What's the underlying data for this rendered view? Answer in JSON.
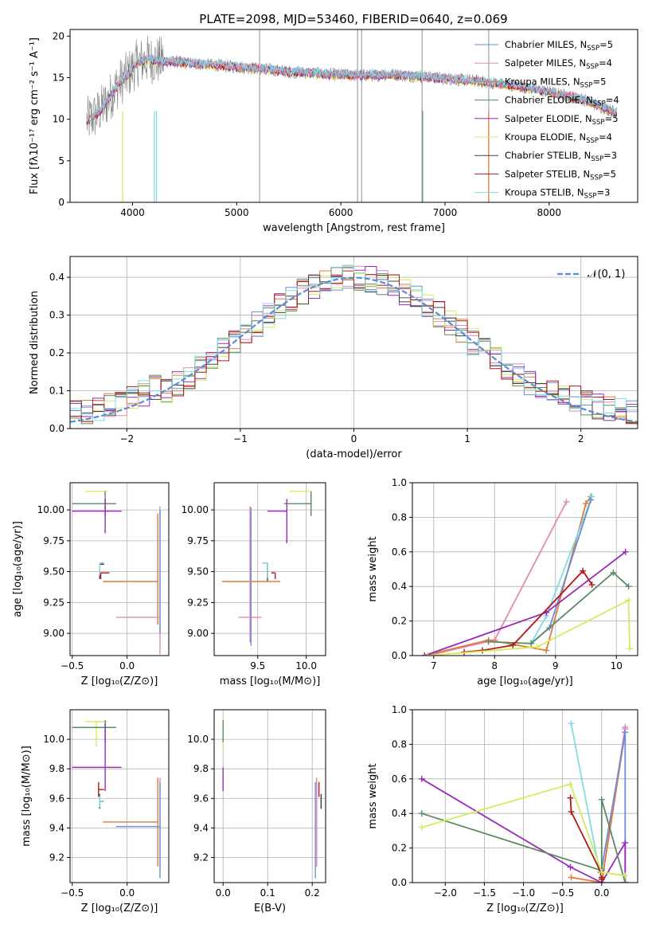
{
  "title": "PLATE=2098, MJD=53460, FIBERID=0640, z=0.069",
  "colors": {
    "chabrier_miles": "#6a8fd8",
    "salpeter_miles": "#e08ab8",
    "kroupa_miles": "#e07a3a",
    "chabrier_elodie": "#5c8a64",
    "salpeter_elodie": "#9a2ab8",
    "kroupa_elodie": "#d4ec5c",
    "chabrier_stelib": "#404040",
    "salpeter_stelib": "#b01818",
    "kroupa_stelib": "#7fdde0",
    "data": "#808080",
    "gaussian": "#5a8ad8"
  },
  "legend_top": [
    {
      "text": "Chabrier MILES, N",
      "sub": "SSP",
      "tail": "=5",
      "color_key": "chabrier_miles"
    },
    {
      "text": "Salpeter MILES, N",
      "sub": "SSP",
      "tail": "=4",
      "color_key": "salpeter_miles"
    },
    {
      "text": "Kroupa MILES, N",
      "sub": "SSP",
      "tail": "=5",
      "color_key": "kroupa_miles"
    },
    {
      "text": "Chabrier ELODIE, N",
      "sub": "SSP",
      "tail": "=4",
      "color_key": "chabrier_elodie"
    },
    {
      "text": "Salpeter ELODIE, N",
      "sub": "SSP",
      "tail": "=5",
      "color_key": "salpeter_elodie"
    },
    {
      "text": "Kroupa ELODIE, N",
      "sub": "SSP",
      "tail": "=4",
      "color_key": "kroupa_elodie"
    },
    {
      "text": "Chabrier STELIB, N",
      "sub": "SSP",
      "tail": "=3",
      "color_key": "chabrier_stelib"
    },
    {
      "text": "Salpeter STELIB, N",
      "sub": "SSP",
      "tail": "=5",
      "color_key": "salpeter_stelib"
    },
    {
      "text": "Kroupa STELIB, N",
      "sub": "SSP",
      "tail": "=3",
      "color_key": "kroupa_stelib"
    }
  ],
  "chart_data": [
    {
      "id": "spectrum",
      "type": "line",
      "xlabel": "wavelength [Angstrom, rest frame]",
      "ylabel": "Flux [fλ10⁻¹⁷ erg cm⁻² s⁻¹ A⁻¹]",
      "xlim": [
        3400,
        8850
      ],
      "ylim": [
        0,
        20.8
      ],
      "xticks": [
        4000,
        5000,
        6000,
        7000,
        8000
      ],
      "yticks": [
        0,
        5,
        10,
        15,
        20
      ],
      "continuum": {
        "x": [
          3560,
          3650,
          3750,
          3850,
          3950,
          4050,
          4150,
          4300,
          4500,
          4700,
          4900,
          5100,
          5300,
          5500,
          5700,
          5900,
          6100,
          6300,
          6500,
          6700,
          6900,
          7100,
          7300,
          7500,
          7700,
          7900,
          8100,
          8300,
          8500,
          8650
        ],
        "y": [
          9.8,
          10.5,
          12.0,
          14.0,
          15.3,
          16.8,
          17.2,
          17.0,
          16.8,
          16.6,
          16.4,
          16.2,
          16.0,
          15.7,
          15.6,
          15.4,
          15.3,
          15.3,
          15.4,
          15.2,
          15.0,
          14.8,
          14.6,
          14.3,
          14.0,
          13.5,
          13.0,
          12.5,
          11.5,
          10.8
        ]
      }
    },
    {
      "id": "residuals",
      "type": "histogram",
      "xlabel": "(data-model)/error",
      "ylabel": "Normed distribution",
      "xlim": [
        -2.5,
        2.5
      ],
      "ylim": [
        0,
        0.455
      ],
      "xticks": [
        -2,
        -1,
        0,
        1,
        2
      ],
      "yticks": [
        0.0,
        0.1,
        0.2,
        0.3,
        0.4
      ],
      "legend": "𝒩(0, 1)",
      "bin_width": 0.1
    },
    {
      "id": "age_vs_Z",
      "type": "errorbar",
      "xlabel": "Z [log₁₀(Z/Z⊙)]",
      "ylabel": "age  [log₁₀(age/yr)]",
      "xlim": [
        -0.52,
        0.38
      ],
      "ylim": [
        8.82,
        10.22
      ],
      "xticks": [
        -0.5,
        0.0
      ],
      "yticks": [
        9.0,
        9.25,
        9.5,
        9.75,
        10.0
      ],
      "points": [
        {
          "k": "kroupa_elodie",
          "x": -0.28,
          "xerr": [
            0.1,
            0.1
          ],
          "y": 10.15,
          "yerr": [
            0.0,
            0.0
          ]
        },
        {
          "k": "chabrier_elodie",
          "x": -0.2,
          "xerr": [
            0.3,
            0.1
          ],
          "y": 10.05,
          "yerr": [
            0.1,
            0.1
          ]
        },
        {
          "k": "salpeter_elodie",
          "x": -0.2,
          "xerr": [
            0.3,
            0.15
          ],
          "y": 9.99,
          "yerr": [
            0.18,
            0.1
          ]
        },
        {
          "k": "chabrier_stelib",
          "x": -0.25,
          "xerr": [
            0.0,
            0.04
          ],
          "y": 9.56,
          "yerr": [
            0.12,
            0.0
          ]
        },
        {
          "k": "kroupa_stelib",
          "x": -0.25,
          "xerr": [
            0.0,
            0.04
          ],
          "y": 9.57,
          "yerr": [
            0.1,
            0.0
          ]
        },
        {
          "k": "salpeter_stelib",
          "x": -0.24,
          "xerr": [
            0.0,
            0.08
          ],
          "y": 9.49,
          "yerr": [
            0.05,
            0.0
          ]
        },
        {
          "k": "kroupa_miles",
          "x": 0.28,
          "xerr": [
            0.5,
            0.0
          ],
          "y": 9.42,
          "yerr": [
            0.35,
            0.55
          ]
        },
        {
          "k": "salpeter_miles",
          "x": 0.3,
          "xerr": [
            0.4,
            0.0
          ],
          "y": 9.13,
          "yerr": [
            0.3,
            0.9
          ]
        },
        {
          "k": "chabrier_miles",
          "x": 0.3,
          "xerr": [
            0.0,
            0.0
          ],
          "y": 9.3,
          "yerr": [
            0.3,
            0.7
          ]
        }
      ]
    },
    {
      "id": "age_vs_mass",
      "type": "errorbar",
      "xlabel": "mass [log₁₀(M/M⊙)]",
      "ylabel": "",
      "xlim": [
        9.05,
        10.2
      ],
      "ylim": [
        8.82,
        10.22
      ],
      "xticks": [
        9.5,
        10.0
      ],
      "yticks": [
        9.0,
        9.25,
        9.5,
        9.75,
        10.0
      ],
      "points": [
        {
          "k": "kroupa_elodie",
          "x": 10.05,
          "xerr": [
            0.22,
            0.0
          ],
          "y": 10.15,
          "yerr": [
            0.13,
            0.0
          ]
        },
        {
          "k": "chabrier_elodie",
          "x": 10.05,
          "xerr": [
            0.28,
            0.0
          ],
          "y": 10.05,
          "yerr": [
            0.1,
            0.1
          ]
        },
        {
          "k": "salpeter_elodie",
          "x": 9.8,
          "xerr": [
            0.2,
            0.0
          ],
          "y": 9.99,
          "yerr": [
            0.26,
            0.1
          ]
        },
        {
          "k": "chabrier_stelib",
          "x": 9.6,
          "xerr": [
            0.05,
            0.0
          ],
          "y": 9.57,
          "yerr": [
            0.15,
            0.0
          ]
        },
        {
          "k": "kroupa_stelib",
          "x": 9.6,
          "xerr": [
            0.05,
            0.0
          ],
          "y": 9.57,
          "yerr": [
            0.12,
            0.0
          ]
        },
        {
          "k": "salpeter_stelib",
          "x": 9.68,
          "xerr": [
            0.04,
            0.0
          ],
          "y": 9.49,
          "yerr": [
            0.05,
            0.0
          ]
        },
        {
          "k": "kroupa_miles",
          "x": 9.43,
          "xerr": [
            0.3,
            0.3
          ],
          "y": 9.42,
          "yerr": [
            0.5,
            0.6
          ]
        },
        {
          "k": "salpeter_miles",
          "x": 9.42,
          "xerr": [
            0.12,
            0.12
          ],
          "y": 9.13,
          "yerr": [
            0.2,
            0.9
          ]
        },
        {
          "k": "chabrier_miles",
          "x": 9.43,
          "xerr": [
            0.0,
            0.0
          ],
          "y": 9.3,
          "yerr": [
            0.4,
            0.7
          ]
        }
      ]
    },
    {
      "id": "weight_vs_age",
      "type": "line",
      "xlabel": "age  [log₁₀(age/yr)]",
      "ylabel": "mass weight",
      "xlim": [
        6.65,
        10.35
      ],
      "ylim": [
        0,
        1.0
      ],
      "xticks": [
        7,
        8,
        9,
        10
      ],
      "yticks": [
        0.0,
        0.2,
        0.4,
        0.6,
        0.8,
        1.0
      ],
      "series": [
        {
          "k": "salpeter_miles",
          "x": [
            6.9,
            8.0,
            9.18
          ],
          "y": [
            0.0,
            0.09,
            0.89
          ]
        },
        {
          "k": "kroupa_miles",
          "x": [
            6.85,
            7.9,
            8.85,
            9.5,
            9.58
          ],
          "y": [
            0.0,
            0.09,
            0.03,
            0.88,
            0.92
          ]
        },
        {
          "k": "kroupa_stelib",
          "x": [
            8.6,
            8.85,
            9.6
          ],
          "y": [
            0.07,
            0.23,
            0.92
          ]
        },
        {
          "k": "chabrier_miles",
          "x": [
            8.6,
            8.9,
            9.58
          ],
          "y": [
            0.07,
            0.16,
            0.9
          ]
        },
        {
          "k": "salpeter_elodie",
          "x": [
            6.85,
            8.85,
            10.15
          ],
          "y": [
            0.0,
            0.25,
            0.6
          ]
        },
        {
          "k": "chabrier_elodie",
          "x": [
            7.9,
            8.6,
            9.95,
            10.2
          ],
          "y": [
            0.08,
            0.07,
            0.48,
            0.4
          ]
        },
        {
          "k": "salpeter_stelib",
          "x": [
            7.5,
            7.8,
            8.3,
            9.45,
            9.6
          ],
          "y": [
            0.02,
            0.03,
            0.06,
            0.49,
            0.41
          ]
        },
        {
          "k": "kroupa_elodie",
          "x": [
            6.9,
            8.7,
            10.2,
            10.22
          ],
          "y": [
            0.0,
            0.05,
            0.32,
            0.04
          ]
        }
      ]
    },
    {
      "id": "mass_vs_Z",
      "type": "errorbar",
      "xlabel": "Z [log₁₀(Z/Z⊙)]",
      "ylabel": "mass [log₁₀(M/M⊙)]",
      "xlim": [
        -0.52,
        0.38
      ],
      "ylim": [
        9.03,
        10.2
      ],
      "xticks": [
        -0.5,
        0.0
      ],
      "yticks": [
        9.2,
        9.4,
        9.6,
        9.8,
        10.0
      ],
      "points": [
        {
          "k": "kroupa_elodie",
          "x": -0.28,
          "xerr": [
            0.1,
            0.1
          ],
          "y": 10.12,
          "yerr": [
            0.17,
            0.0
          ]
        },
        {
          "k": "chabrier_elodie",
          "x": -0.2,
          "xerr": [
            0.3,
            0.1
          ],
          "y": 10.08,
          "yerr": [
            0.1,
            0.05
          ]
        },
        {
          "k": "salpeter_elodie",
          "x": -0.2,
          "xerr": [
            0.3,
            0.15
          ],
          "y": 9.81,
          "yerr": [
            0.16,
            0.3
          ]
        },
        {
          "k": "chabrier_stelib",
          "x": -0.25,
          "xerr": [
            0.0,
            0.04
          ],
          "y": 9.58,
          "yerr": [
            0.05,
            0.05
          ]
        },
        {
          "k": "kroupa_stelib",
          "x": -0.25,
          "xerr": [
            0.0,
            0.04
          ],
          "y": 9.58,
          "yerr": [
            0.04,
            0.04
          ]
        },
        {
          "k": "salpeter_stelib",
          "x": -0.26,
          "xerr": [
            0.0,
            0.05
          ],
          "y": 9.66,
          "yerr": [
            0.05,
            0.05
          ]
        },
        {
          "k": "kroupa_miles",
          "x": 0.28,
          "xerr": [
            0.5,
            0.0
          ],
          "y": 9.44,
          "yerr": [
            0.3,
            0.3
          ]
        },
        {
          "k": "salpeter_miles",
          "x": 0.3,
          "xerr": [
            0.0,
            0.0
          ],
          "y": 9.44,
          "yerr": [
            0.3,
            0.3
          ]
        },
        {
          "k": "chabrier_miles",
          "x": 0.3,
          "xerr": [
            0.4,
            0.0
          ],
          "y": 9.41,
          "yerr": [
            0.35,
            0.3
          ]
        }
      ]
    },
    {
      "id": "mass_vs_ebv",
      "type": "errorbar",
      "xlabel": "E(B-V)",
      "ylabel": "",
      "xlim": [
        -0.02,
        0.23
      ],
      "ylim": [
        9.03,
        10.2
      ],
      "xticks": [
        0.0,
        0.1,
        0.2
      ],
      "yticks": [
        9.2,
        9.4,
        9.6,
        9.8,
        10.0
      ],
      "points": [
        {
          "k": "kroupa_elodie",
          "x": 0.0,
          "xerr": [
            0,
            0
          ],
          "y": 10.12,
          "yerr": [
            0.17,
            0.02
          ]
        },
        {
          "k": "chabrier_elodie",
          "x": 0.0,
          "xerr": [
            0,
            0
          ],
          "y": 10.08,
          "yerr": [
            0.1,
            0.05
          ]
        },
        {
          "k": "salpeter_elodie",
          "x": 0.0,
          "xerr": [
            0,
            0
          ],
          "y": 9.81,
          "yerr": [
            0.16,
            0.0
          ]
        },
        {
          "k": "kroupa_stelib",
          "x": 0.22,
          "xerr": [
            0,
            0
          ],
          "y": 9.58,
          "yerr": [
            0.05,
            0.05
          ]
        },
        {
          "k": "chabrier_stelib",
          "x": 0.22,
          "xerr": [
            0,
            0
          ],
          "y": 9.58,
          "yerr": [
            0.05,
            0.05
          ]
        },
        {
          "k": "salpeter_stelib",
          "x": 0.215,
          "xerr": [
            0,
            0
          ],
          "y": 9.66,
          "yerr": [
            0.05,
            0.05
          ]
        },
        {
          "k": "kroupa_miles",
          "x": 0.21,
          "xerr": [
            0,
            0
          ],
          "y": 9.44,
          "yerr": [
            0.3,
            0.3
          ]
        },
        {
          "k": "salpeter_miles",
          "x": 0.21,
          "xerr": [
            0,
            0
          ],
          "y": 9.44,
          "yerr": [
            0.3,
            0.3
          ]
        },
        {
          "k": "chabrier_miles",
          "x": 0.207,
          "xerr": [
            0,
            0
          ],
          "y": 9.41,
          "yerr": [
            0.35,
            0.3
          ]
        }
      ]
    },
    {
      "id": "weight_vs_Z",
      "type": "line",
      "xlabel": "Z [log₁₀(Z/Z⊙)]",
      "ylabel": "mass weight",
      "xlim": [
        -2.42,
        0.46
      ],
      "ylim": [
        0,
        1.0
      ],
      "xticks": [
        -2.0,
        -1.5,
        -1.0,
        -0.5,
        0.0
      ],
      "yticks": [
        0.0,
        0.2,
        0.4,
        0.6,
        0.8,
        1.0
      ],
      "series": [
        {
          "k": "kroupa_stelib",
          "x": [
            -0.39,
            0.0,
            0.3
          ],
          "y": [
            0.92,
            0.0,
            0.0
          ]
        },
        {
          "k": "salpeter_miles",
          "x": [
            0.0,
            0.3,
            0.3
          ],
          "y": [
            0.0,
            0.9,
            0.89
          ]
        },
        {
          "k": "kroupa_miles",
          "x": [
            -0.39,
            0.0,
            0.3
          ],
          "y": [
            0.03,
            0.0,
            0.87
          ]
        },
        {
          "k": "chabrier_miles",
          "x": [
            0.0,
            0.3,
            0.3
          ],
          "y": [
            0.08,
            0.87,
            0.0
          ]
        },
        {
          "k": "salpeter_elodie",
          "x": [
            -2.3,
            -0.4,
            0.0,
            0.3,
            0.3
          ],
          "y": [
            0.6,
            0.09,
            0.0,
            0.23,
            0.0
          ]
        },
        {
          "k": "chabrier_elodie",
          "x": [
            -2.3,
            0.0,
            0.0,
            0.3
          ],
          "y": [
            0.4,
            0.07,
            0.48,
            0.0
          ]
        },
        {
          "k": "salpeter_stelib",
          "x": [
            -0.4,
            -0.39,
            -0.01,
            0.0,
            0.0
          ],
          "y": [
            0.49,
            0.41,
            0.06,
            0.03,
            0.02
          ]
        },
        {
          "k": "kroupa_elodie",
          "x": [
            -2.3,
            -0.4,
            0.0,
            0.3
          ],
          "y": [
            0.32,
            0.57,
            0.06,
            0.04
          ]
        }
      ]
    }
  ]
}
